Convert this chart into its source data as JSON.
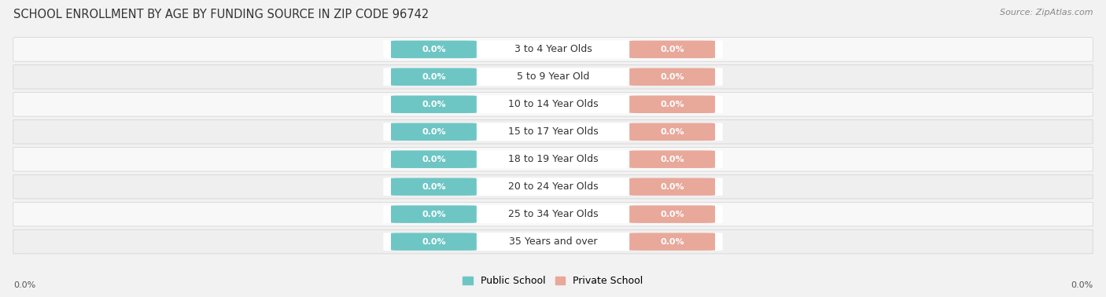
{
  "title": "SCHOOL ENROLLMENT BY AGE BY FUNDING SOURCE IN ZIP CODE 96742",
  "source": "Source: ZipAtlas.com",
  "categories": [
    "3 to 4 Year Olds",
    "5 to 9 Year Old",
    "10 to 14 Year Olds",
    "15 to 17 Year Olds",
    "18 to 19 Year Olds",
    "20 to 24 Year Olds",
    "25 to 34 Year Olds",
    "35 Years and over"
  ],
  "public_values": [
    0.0,
    0.0,
    0.0,
    0.0,
    0.0,
    0.0,
    0.0,
    0.0
  ],
  "private_values": [
    0.0,
    0.0,
    0.0,
    0.0,
    0.0,
    0.0,
    0.0,
    0.0
  ],
  "public_color": "#6EC6C4",
  "private_color": "#E8A89A",
  "background_color": "#f2f2f2",
  "row_bg_light": "#f8f8f8",
  "row_bg_dark": "#efefef",
  "title_fontsize": 10.5,
  "source_fontsize": 8,
  "value_fontsize": 8,
  "label_fontsize": 9,
  "legend_fontsize": 9,
  "axis_label": "0.0%"
}
